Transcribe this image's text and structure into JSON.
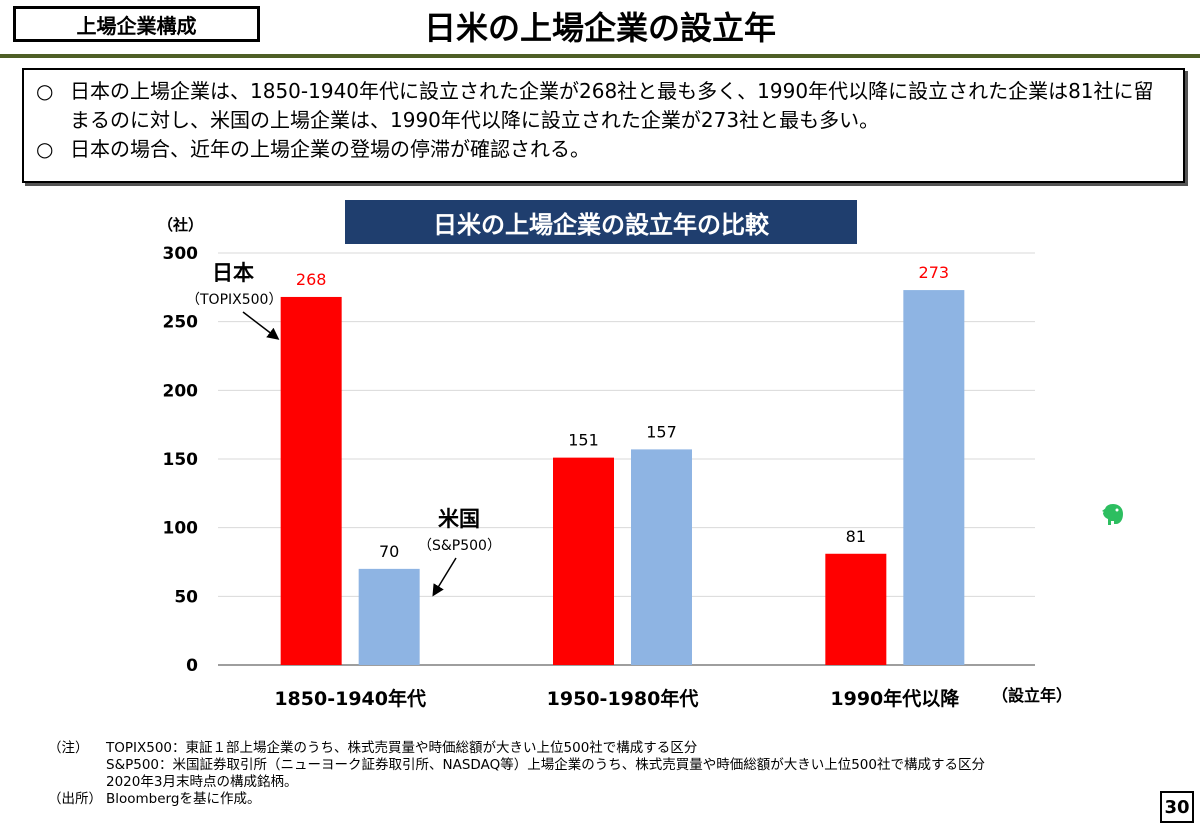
{
  "header": {
    "section_label": "上場企業構成",
    "title": "日米の上場企業の設立年"
  },
  "summary": {
    "bullets": [
      "日本の上場企業は、1850-1940年代に設立された企業が268社と最も多く、1990年代以降に設立された企業は81社に留まるのに対し、米国の上場企業は、1990年代以降に設立された企業が273社と最も多い。",
      "日本の場合、近年の上場企業の登場の停滞が確認される。"
    ],
    "bullet_mark": "○"
  },
  "chart_data": {
    "type": "bar",
    "title": "日米の上場企業の設立年の比較",
    "ylabel": "（社）",
    "xlabel": "（設立年）",
    "ylim": [
      0,
      300
    ],
    "yticks": [
      0,
      50,
      100,
      150,
      200,
      250,
      300
    ],
    "grid": true,
    "categories": [
      "1850-1940年代",
      "1950-1980年代",
      "1990年代以降"
    ],
    "series": [
      {
        "name": "日本",
        "sub": "（TOPIX500）",
        "color": "#ff0000",
        "label_color": "#ff0000",
        "values": [
          268,
          151,
          81
        ]
      },
      {
        "name": "米国",
        "sub": "（S&P500）",
        "color": "#8eb4e3",
        "label_color": "#ff0000",
        "values": [
          70,
          157,
          273
        ]
      }
    ],
    "red_labels": [
      [
        true,
        false,
        false
      ],
      [
        false,
        false,
        true
      ]
    ]
  },
  "notes": {
    "note_tag": "（注）",
    "source_tag": "（出所）",
    "lines": [
      "TOPIX500：東証１部上場企業のうち、株式売買量や時価総額が大きい上位500社で構成する区分",
      "S&P500：米国証券取引所（ニューヨーク証券取引所、NASDAQ等）上場企業のうち、株式売買量や時価総額が大きい上位500社で構成する区分",
      "2020年3月末時点の構成銘柄。"
    ],
    "source": "Bloombergを基に作成。"
  },
  "page_number": "30",
  "icons": {
    "floating": "evernote-elephant-icon"
  }
}
